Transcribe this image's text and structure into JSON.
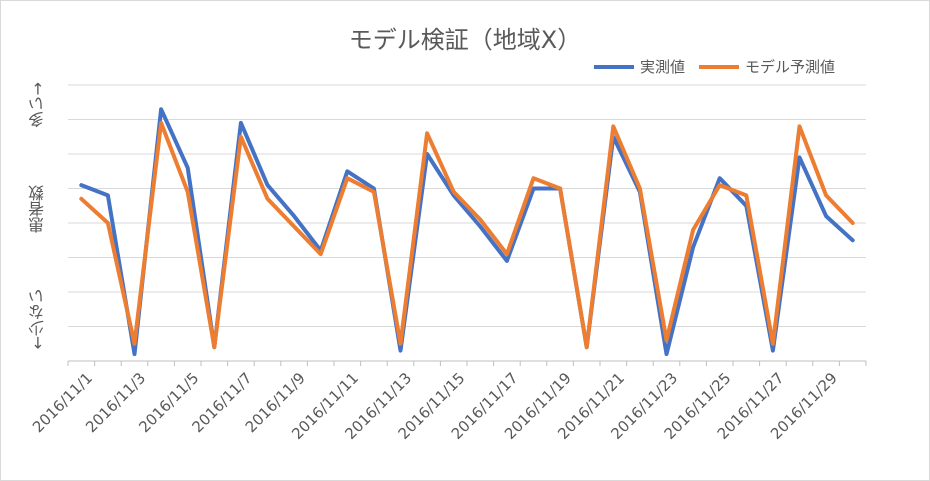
{
  "chart_data": {
    "type": "line",
    "title": "モデル検証（地域X）",
    "y_top_label": "多い→",
    "y_mid_label": "患者数",
    "y_bottom_label": "←少ない",
    "x": [
      "2016/11/1",
      "2016/11/2",
      "2016/11/3",
      "2016/11/4",
      "2016/11/5",
      "2016/11/6",
      "2016/11/7",
      "2016/11/8",
      "2016/11/9",
      "2016/11/10",
      "2016/11/11",
      "2016/11/12",
      "2016/11/13",
      "2016/11/14",
      "2016/11/15",
      "2016/11/16",
      "2016/11/17",
      "2016/11/18",
      "2016/11/19",
      "2016/11/20",
      "2016/11/21",
      "2016/11/22",
      "2016/11/23",
      "2016/11/24",
      "2016/11/25",
      "2016/11/26",
      "2016/11/27",
      "2016/11/28",
      "2016/11/29",
      "2016/11/30"
    ],
    "x_tick_labels": [
      "2016/11/1",
      "2016/11/3",
      "2016/11/5",
      "2016/11/7",
      "2016/11/9",
      "2016/11/11",
      "2016/11/13",
      "2016/11/15",
      "2016/11/17",
      "2016/11/19",
      "2016/11/21",
      "2016/11/23",
      "2016/11/25",
      "2016/11/27",
      "2016/11/29"
    ],
    "ylim": [
      0,
      8
    ],
    "gridlines": 8,
    "grid": true,
    "legend_position": "top-right",
    "series": [
      {
        "name": "実測値",
        "color": "#4472c4",
        "values": [
          5.1,
          4.8,
          0.2,
          7.3,
          5.6,
          0.4,
          6.9,
          5.1,
          4.2,
          3.2,
          5.5,
          5.0,
          0.3,
          6.0,
          4.8,
          3.9,
          2.9,
          5.0,
          5.0,
          0.4,
          6.5,
          4.9,
          0.2,
          3.3,
          5.3,
          4.5,
          0.3,
          5.9,
          4.2,
          3.5
        ]
      },
      {
        "name": "モデル予測値",
        "color": "#ed7d31",
        "values": [
          4.7,
          4.0,
          0.5,
          6.9,
          4.9,
          0.4,
          6.5,
          4.7,
          3.9,
          3.1,
          5.3,
          4.9,
          0.5,
          6.6,
          4.9,
          4.1,
          3.1,
          5.3,
          5.0,
          0.4,
          6.8,
          5.0,
          0.6,
          3.8,
          5.1,
          4.8,
          0.5,
          6.8,
          4.8,
          4.0
        ]
      }
    ]
  }
}
